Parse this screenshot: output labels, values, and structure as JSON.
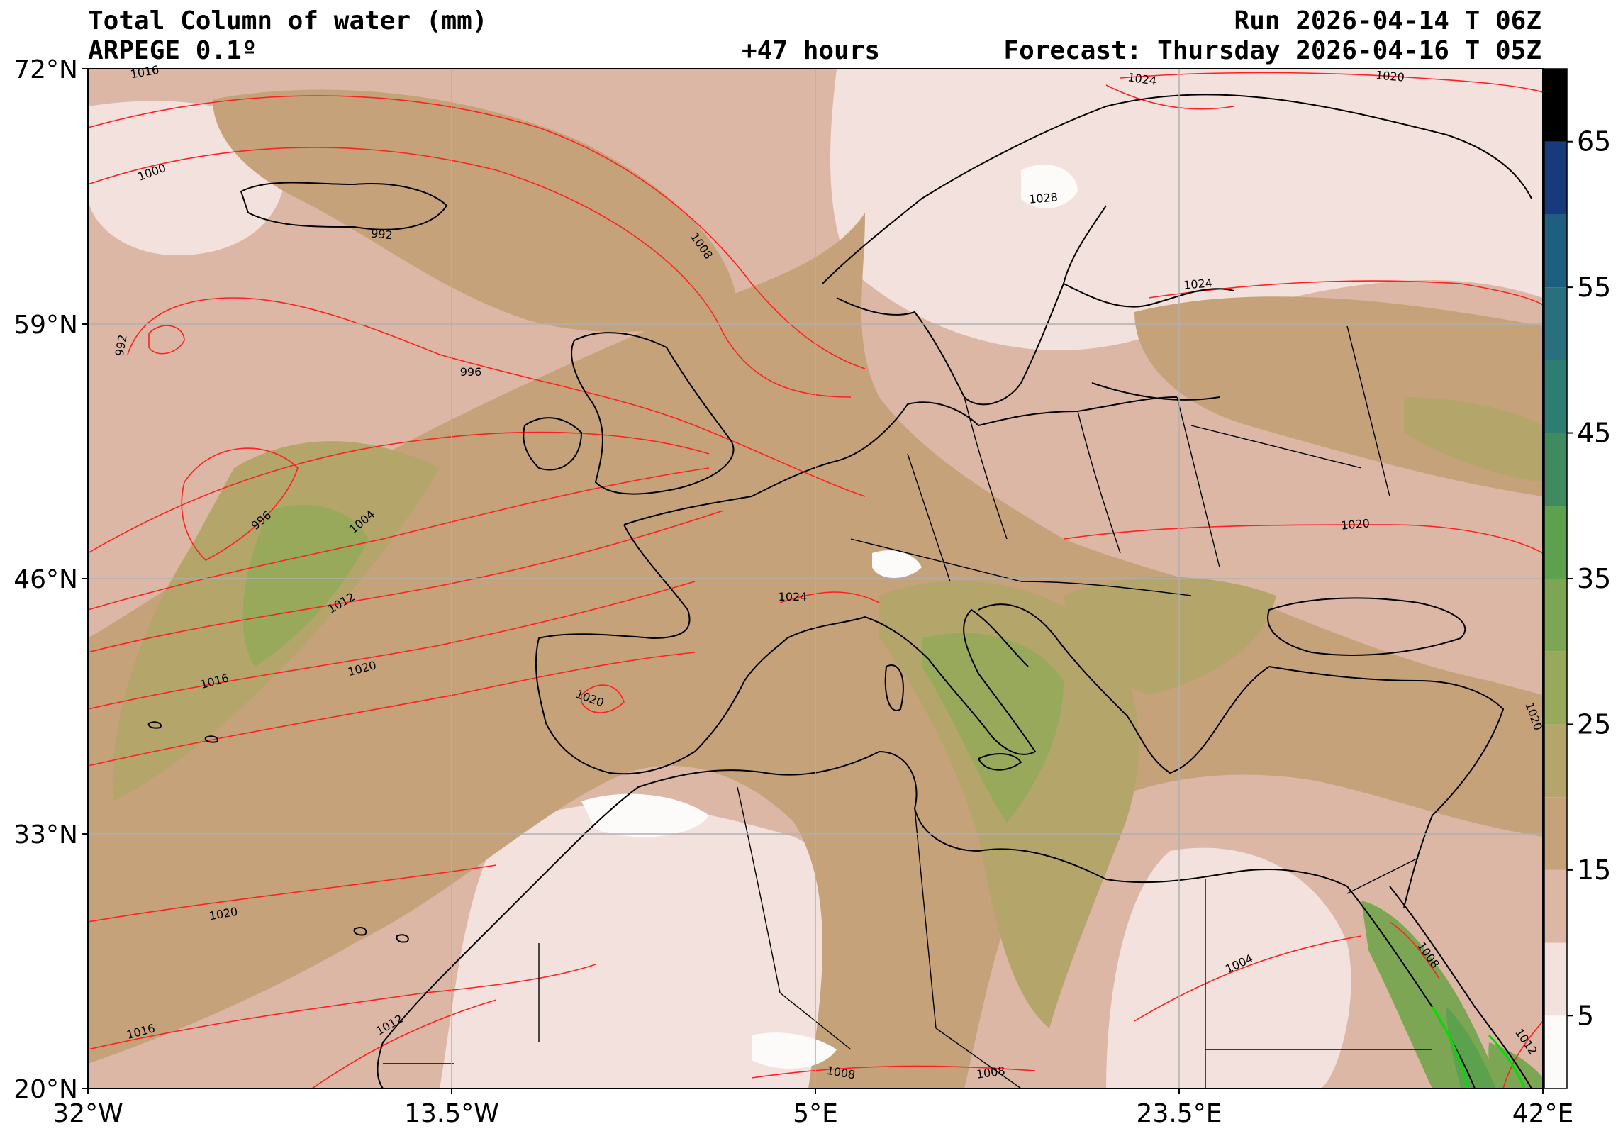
{
  "header": {
    "title": "Total Column of water (mm)",
    "model": "ARPEGE 0.1º",
    "lead": "+47 hours",
    "run": "Run 2026-04-14 T 06Z",
    "forecast": "Forecast: Thursday 2026-04-16 T 05Z"
  },
  "axes": {
    "lat_labels": [
      "72°N",
      "59°N",
      "46°N",
      "33°N",
      "20°N"
    ],
    "lon_labels": [
      "32°W",
      "13.5°W",
      "5°E",
      "23.5°E",
      "42°E"
    ],
    "lat_range": [
      20,
      72
    ],
    "lon_range": [
      -32,
      42
    ]
  },
  "colorbar": {
    "tick_labels": [
      "65",
      "55",
      "45",
      "35",
      "25",
      "15",
      "5"
    ],
    "range": [
      0,
      70
    ],
    "colors": [
      "#fdfafa",
      "#f3e1dd",
      "#dcb7a5",
      "#c5a27a",
      "#b4a56a",
      "#98a95c",
      "#7ca653",
      "#5ba14e",
      "#3f8a5f",
      "#2e7d72",
      "#2a6f7e",
      "#1e5e7f",
      "#173a7d",
      "#000000"
    ]
  },
  "isobar_labels": [
    "1016",
    "1024",
    "1020",
    "1000",
    "992",
    "1028",
    "1008",
    "992",
    "996",
    "1024",
    "996",
    "1004",
    "1012",
    "1024",
    "1020",
    "1016",
    "1020",
    "1020",
    "1020",
    "1020",
    "1004",
    "1008",
    "1016",
    "1012",
    "1008",
    "1008",
    "1012"
  ],
  "colors": {
    "isobar": "#ff2020",
    "coast": "#000000",
    "grid": "#b0b0b0",
    "highlight": "#00e000"
  }
}
